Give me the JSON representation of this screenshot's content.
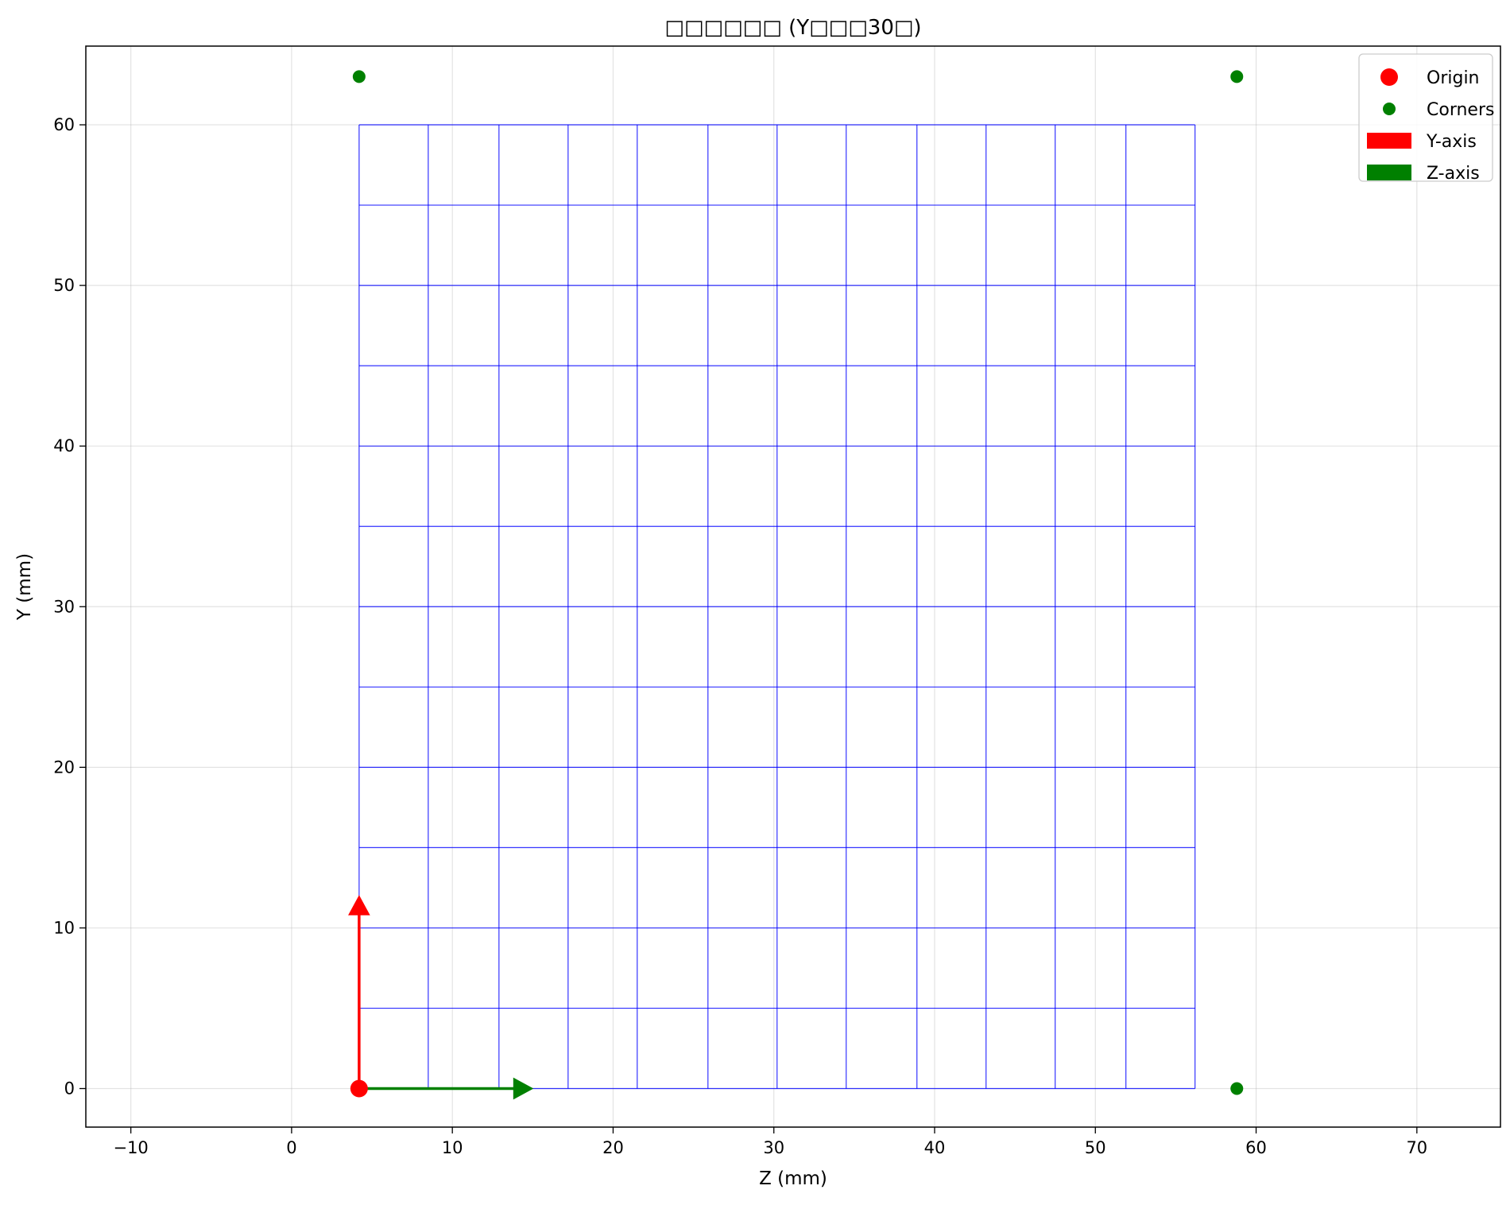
{
  "chart_data": {
    "type": "scatter",
    "title": "□□□□□□ (Y□□□30□)",
    "xlabel": "Z (mm)",
    "ylabel": "Y (mm)",
    "xlim": [
      -12.8,
      75.2
    ],
    "ylim": [
      -2.4,
      64.9
    ],
    "xticks": [
      -10,
      0,
      10,
      20,
      30,
      40,
      50,
      60,
      70
    ],
    "yticks": [
      0,
      10,
      20,
      30,
      40,
      50,
      60
    ],
    "grid": true,
    "legend_position": "top-right",
    "mesh": {
      "x": [
        4.2,
        8.5,
        12.9,
        17.2,
        21.5,
        25.9,
        30.2,
        34.5,
        38.9,
        43.2,
        47.5,
        51.9,
        56.2
      ],
      "y": [
        0,
        5,
        10,
        15,
        20,
        25,
        30,
        35,
        40,
        45,
        50,
        55,
        60
      ],
      "color": "#0000ff"
    },
    "series": [
      {
        "name": "Origin",
        "marker": "circle",
        "color": "#ff0000",
        "points": [
          [
            4.2,
            0
          ]
        ]
      },
      {
        "name": "Corners",
        "marker": "circle",
        "color": "#008000",
        "points": [
          [
            4.2,
            63
          ],
          [
            58.8,
            63
          ],
          [
            58.8,
            0
          ]
        ]
      },
      {
        "name": "Y-axis",
        "marker": "arrow",
        "color": "#ff0000",
        "from": [
          4.2,
          0
        ],
        "to": [
          4.2,
          12
        ]
      },
      {
        "name": "Z-axis",
        "marker": "arrow",
        "color": "#008000",
        "from": [
          4.2,
          0
        ],
        "to": [
          15,
          0
        ]
      }
    ]
  }
}
